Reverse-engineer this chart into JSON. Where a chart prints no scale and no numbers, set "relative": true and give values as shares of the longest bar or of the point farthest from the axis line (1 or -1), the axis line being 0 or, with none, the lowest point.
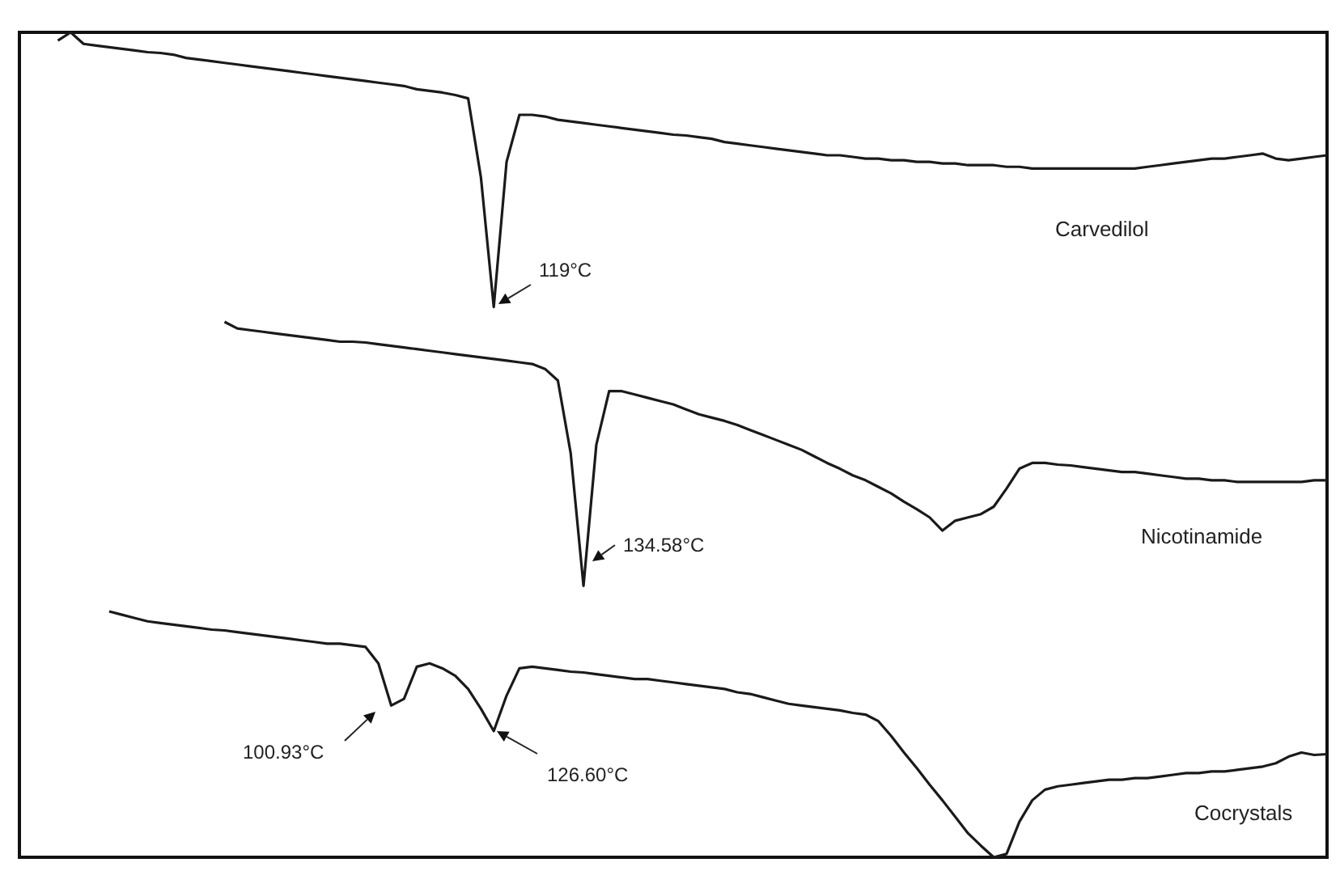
{
  "chart_data": {
    "type": "line",
    "relative": true,
    "marker": "none",
    "categories": [
      null,
      null,
      null,
      null,
      null,
      null,
      null,
      null,
      null,
      null,
      null,
      null,
      null,
      null,
      null,
      null,
      null,
      null,
      null,
      null,
      null,
      null,
      null,
      null,
      null,
      null,
      null,
      null,
      null,
      null,
      null,
      null,
      null,
      null,
      null,
      null,
      null,
      null,
      null,
      null,
      null,
      null,
      null,
      null,
      null,
      null,
      null,
      null,
      null,
      null,
      null,
      null,
      null,
      null,
      null,
      null,
      null,
      null,
      null,
      null,
      null,
      null,
      null,
      null,
      null,
      null,
      null,
      null,
      null,
      null,
      null,
      null,
      null,
      null,
      null,
      null,
      null,
      null,
      null,
      null,
      null,
      null,
      null,
      null,
      null,
      null,
      null,
      null,
      null,
      null,
      null,
      null,
      null,
      null,
      null,
      null,
      null,
      null,
      null,
      null,
      null,
      null,
      null
    ],
    "series": [
      {
        "name": "Carvedilol",
        "color": "#1a1a1a",
        "values": [
          null,
          null,
          null,
          0.99,
          1,
          0.986,
          0.984,
          0.982,
          0.98,
          0.978,
          0.976,
          0.975,
          0.973,
          0.969,
          0.967,
          0.965,
          0.963,
          0.961,
          0.959,
          0.957,
          0.955,
          0.953,
          0.951,
          0.949,
          0.947,
          0.945,
          0.943,
          0.941,
          0.939,
          0.937,
          0.935,
          0.931,
          0.929,
          0.927,
          0.924,
          0.92,
          0.824,
          0.667,
          0.843,
          0.9,
          0.9,
          0.898,
          0.894,
          0.892,
          0.89,
          0.888,
          0.886,
          0.884,
          0.882,
          0.88,
          0.878,
          0.876,
          0.875,
          0.873,
          0.871,
          0.867,
          0.865,
          0.863,
          0.861,
          0.859,
          0.857,
          0.855,
          0.853,
          0.851,
          0.851,
          0.849,
          0.847,
          0.847,
          0.845,
          0.845,
          0.843,
          0.843,
          0.841,
          0.841,
          0.839,
          0.839,
          0.839,
          0.837,
          0.837,
          0.835,
          0.835,
          0.835,
          0.835,
          0.835,
          0.835,
          0.835,
          0.835,
          0.835,
          0.837,
          0.839,
          0.841,
          0.843,
          0.845,
          0.847,
          0.847,
          0.849,
          0.851,
          0.853,
          0.847,
          0.845,
          0.847,
          0.849,
          0.851
        ]
      },
      {
        "name": "Nicotinamide",
        "color": "#1a1a1a",
        "values": [
          null,
          null,
          null,
          null,
          null,
          null,
          null,
          null,
          null,
          null,
          null,
          null,
          null,
          null,
          null,
          null,
          0.649,
          0.641,
          0.639,
          0.637,
          0.635,
          0.633,
          0.631,
          0.629,
          0.627,
          0.625,
          0.625,
          0.624,
          0.622,
          0.62,
          0.618,
          0.616,
          0.614,
          0.612,
          0.61,
          0.608,
          0.606,
          0.604,
          0.602,
          0.6,
          0.598,
          0.592,
          0.578,
          0.49,
          0.329,
          0.5,
          0.565,
          0.565,
          0.561,
          0.557,
          0.553,
          0.549,
          0.543,
          0.537,
          0.533,
          0.529,
          0.524,
          0.518,
          0.512,
          0.506,
          0.5,
          0.494,
          0.486,
          0.478,
          0.471,
          0.463,
          0.457,
          0.449,
          0.441,
          0.431,
          0.422,
          0.412,
          0.396,
          0.408,
          0.412,
          0.416,
          0.425,
          0.447,
          0.471,
          0.478,
          0.478,
          0.476,
          0.475,
          0.473,
          0.471,
          0.469,
          0.467,
          0.467,
          0.465,
          0.463,
          0.461,
          0.459,
          0.459,
          0.457,
          0.457,
          0.455,
          0.455,
          0.455,
          0.455,
          0.455,
          0.455,
          0.457,
          0.457
        ]
      },
      {
        "name": "Cocrystals",
        "color": "#1a1a1a",
        "values": [
          null,
          null,
          null,
          null,
          null,
          null,
          null,
          0.298,
          0.294,
          0.29,
          0.286,
          0.284,
          0.282,
          0.28,
          0.278,
          0.276,
          0.275,
          0.273,
          0.271,
          0.269,
          0.267,
          0.265,
          0.263,
          0.261,
          0.259,
          0.259,
          0.257,
          0.255,
          0.235,
          0.184,
          0.192,
          0.231,
          0.235,
          0.229,
          0.22,
          0.204,
          0.18,
          0.153,
          0.196,
          0.229,
          0.231,
          0.229,
          0.227,
          0.225,
          0.224,
          0.222,
          0.22,
          0.218,
          0.216,
          0.216,
          0.214,
          0.212,
          0.21,
          0.208,
          0.206,
          0.204,
          0.2,
          0.198,
          0.194,
          0.19,
          0.186,
          0.184,
          0.182,
          0.18,
          0.178,
          0.175,
          0.173,
          0.165,
          0.147,
          0.127,
          0.108,
          0.088,
          0.069,
          0.049,
          0.029,
          0.014,
          0,
          0.004,
          0.043,
          0.069,
          0.082,
          0.086,
          0.088,
          0.09,
          0.092,
          0.094,
          0.094,
          0.096,
          0.096,
          0.098,
          0.1,
          0.102,
          0.102,
          0.104,
          0.104,
          0.106,
          0.108,
          0.11,
          0.114,
          0.122,
          0.127,
          0.124,
          0.125
        ]
      }
    ],
    "annotations": [
      "119°C",
      "134.58°C",
      "100.93°C",
      "126.60°C"
    ]
  }
}
